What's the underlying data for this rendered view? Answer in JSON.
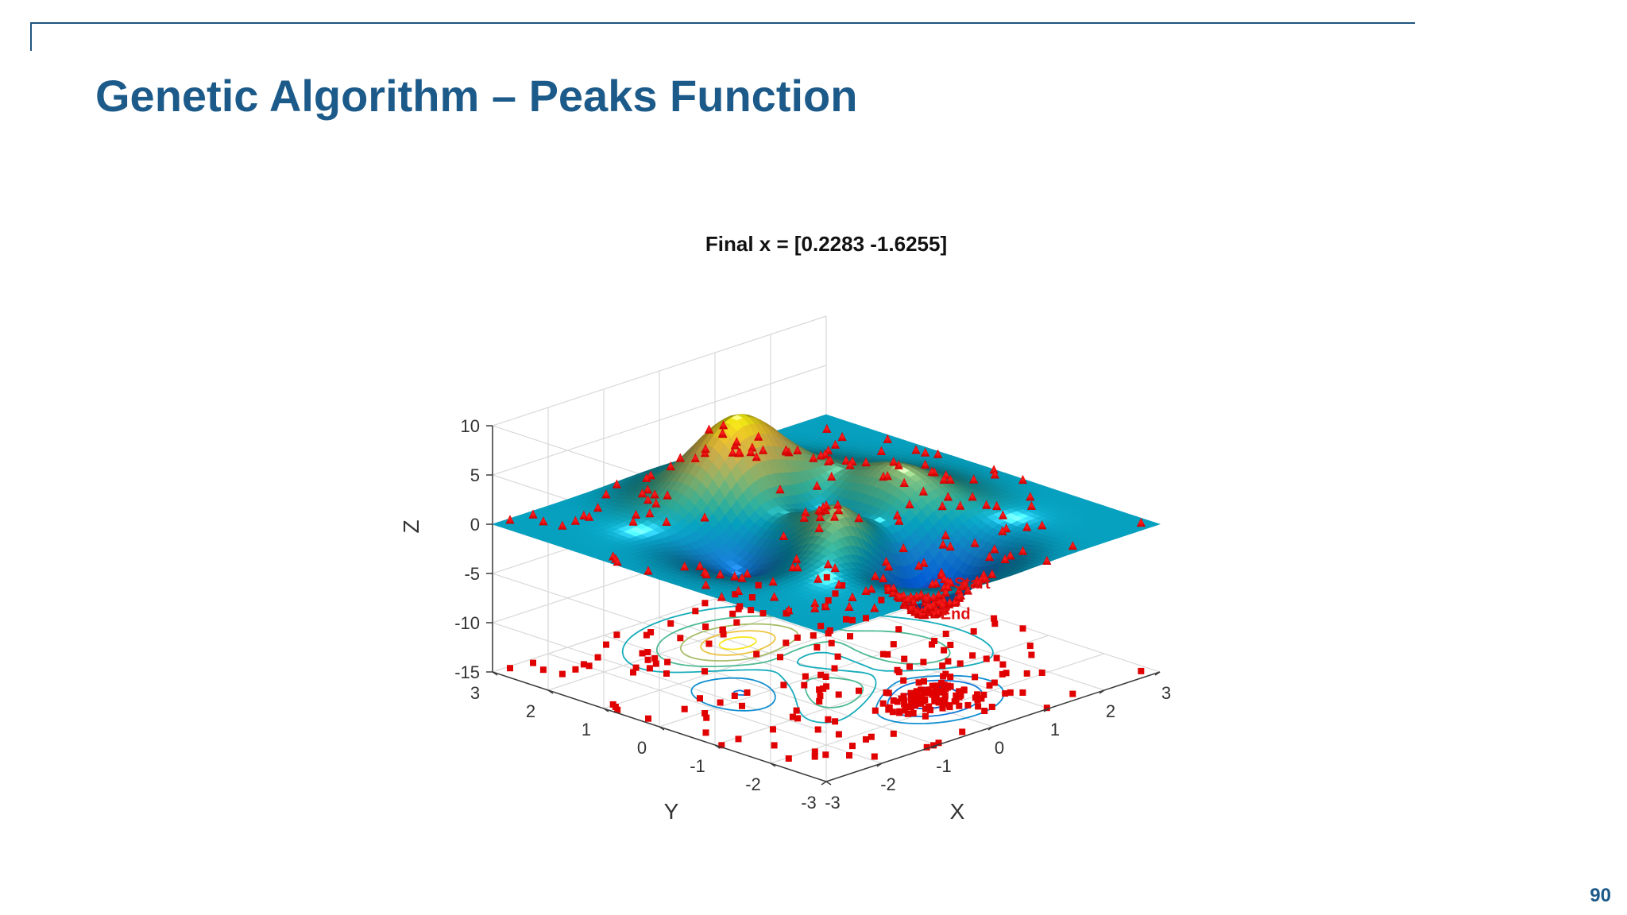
{
  "slide": {
    "title": "Genetic Algorithm – Peaks Function",
    "page_number": "90",
    "accent_color": "#1c5a8a",
    "rule_color": "#1f5580"
  },
  "chart_data": {
    "type": "surface3d",
    "title": "Final x = [0.2283 -1.6255]",
    "function": "peaks",
    "xlabel": "X",
    "ylabel": "Y",
    "zlabel": "Z",
    "xlim": [
      -3,
      3
    ],
    "ylim": [
      -3,
      3
    ],
    "zlim": [
      -15,
      10
    ],
    "xticks": [
      "-3",
      "-2",
      "-1",
      "0",
      "1",
      "2",
      "3"
    ],
    "yticks": [
      "-3",
      "-2",
      "-1",
      "0",
      "1",
      "2",
      "3"
    ],
    "zticks": [
      "10",
      "5",
      "0",
      "-5",
      "-10",
      "-15"
    ],
    "contour_plane_z": -15,
    "grid": true,
    "colormap": "parula",
    "marker_color": "#e00000",
    "annotations": [
      {
        "text": "Start",
        "x": 0.5,
        "y": -1.6,
        "z": -4.0
      },
      {
        "text": "End",
        "x": 0.2283,
        "y": -1.6255,
        "z": -6.5511
      }
    ],
    "final_point": [
      0.2283,
      -1.6255
    ]
  }
}
